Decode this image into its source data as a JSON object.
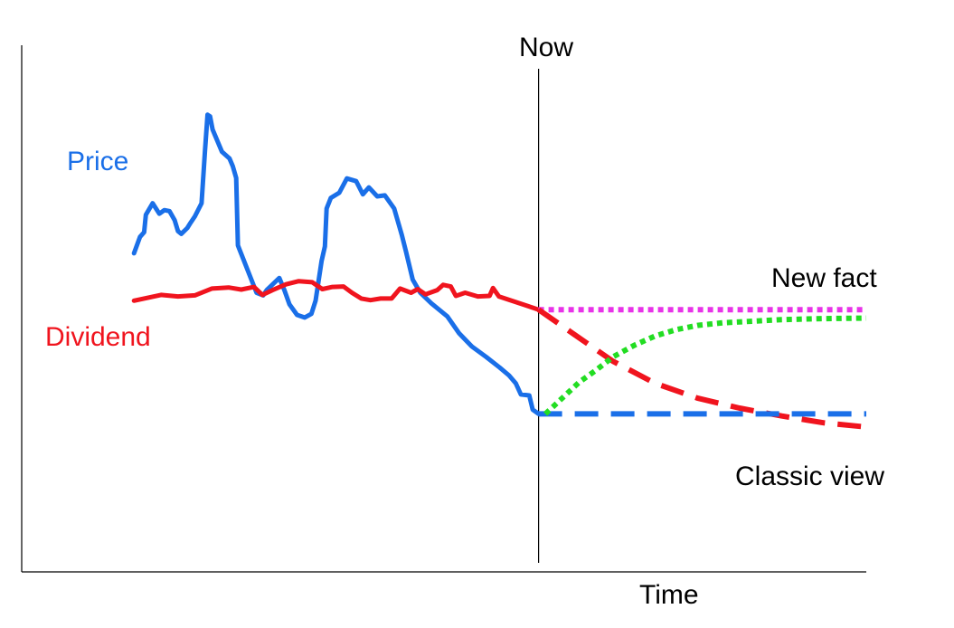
{
  "chart_data": {
    "type": "line",
    "xlabel": "Time",
    "ylabel": "",
    "x_range": [
      0,
      100
    ],
    "y_range": [
      0,
      100
    ],
    "grid": false,
    "annotations": {
      "now": "Now",
      "price": "Price",
      "dividend": "Dividend",
      "new_fact": "New fact",
      "classic_view": "Classic view"
    },
    "now_x": 61.2,
    "series": [
      {
        "name": "Price",
        "role": "historical",
        "color": "#1a6fe8",
        "style": "solid",
        "points": [
          [
            13.3,
            60.5
          ],
          [
            14.0,
            63.6
          ],
          [
            14.5,
            64.5
          ],
          [
            14.7,
            67.8
          ],
          [
            15.5,
            70.0
          ],
          [
            16.3,
            68.0
          ],
          [
            16.9,
            68.7
          ],
          [
            17.5,
            68.5
          ],
          [
            18.1,
            66.8
          ],
          [
            18.5,
            64.7
          ],
          [
            18.9,
            64.2
          ],
          [
            19.6,
            65.3
          ],
          [
            20.0,
            66.3
          ],
          [
            20.5,
            67.5
          ],
          [
            21.3,
            70.0
          ],
          [
            21.7,
            80.0
          ],
          [
            22.0,
            86.8
          ],
          [
            22.3,
            86.5
          ],
          [
            22.6,
            84.0
          ],
          [
            23.7,
            79.8
          ],
          [
            24.6,
            78.5
          ],
          [
            25.0,
            77.0
          ],
          [
            25.4,
            74.8
          ],
          [
            25.6,
            62.0
          ],
          [
            27.8,
            53.0
          ],
          [
            28.6,
            52.5
          ],
          [
            29.0,
            53.5
          ],
          [
            30.5,
            55.8
          ],
          [
            31.1,
            53.5
          ],
          [
            31.7,
            50.8
          ],
          [
            32.6,
            48.8
          ],
          [
            33.5,
            48.3
          ],
          [
            34.3,
            49.0
          ],
          [
            34.8,
            51.5
          ],
          [
            35.5,
            59.0
          ],
          [
            35.9,
            61.8
          ],
          [
            36.1,
            69.0
          ],
          [
            36.6,
            71.0
          ],
          [
            37.6,
            72.0
          ],
          [
            38.5,
            74.7
          ],
          [
            39.6,
            74.2
          ],
          [
            40.4,
            71.7
          ],
          [
            41.1,
            73.0
          ],
          [
            42.1,
            71.3
          ],
          [
            43.0,
            71.5
          ],
          [
            44.1,
            69.0
          ],
          [
            45.0,
            64.0
          ],
          [
            45.5,
            60.8
          ],
          [
            46.3,
            55.5
          ],
          [
            47.2,
            53.0
          ],
          [
            48.5,
            51.0
          ],
          [
            50.4,
            48.5
          ],
          [
            51.8,
            45.3
          ],
          [
            53.3,
            42.8
          ],
          [
            55.0,
            40.8
          ],
          [
            56.6,
            38.8
          ],
          [
            57.7,
            37.3
          ],
          [
            58.5,
            35.8
          ],
          [
            59.1,
            33.7
          ],
          [
            60.1,
            33.5
          ],
          [
            60.5,
            30.8
          ],
          [
            61.2,
            30.0
          ]
        ]
      },
      {
        "name": "Dividend",
        "role": "historical",
        "color": "#f0141e",
        "style": "solid",
        "points": [
          [
            13.3,
            51.5
          ],
          [
            16.5,
            52.6
          ],
          [
            18.5,
            52.3
          ],
          [
            20.5,
            52.5
          ],
          [
            22.5,
            53.8
          ],
          [
            24.5,
            54.0
          ],
          [
            26.0,
            53.6
          ],
          [
            27.5,
            54.1
          ],
          [
            28.5,
            52.6
          ],
          [
            29.7,
            53.5
          ],
          [
            31.3,
            54.6
          ],
          [
            32.8,
            55.2
          ],
          [
            34.4,
            55.0
          ],
          [
            35.6,
            53.7
          ],
          [
            36.8,
            54.1
          ],
          [
            38.1,
            54.2
          ],
          [
            39.1,
            53.0
          ],
          [
            40.2,
            51.9
          ],
          [
            41.3,
            51.6
          ],
          [
            42.5,
            51.9
          ],
          [
            43.8,
            51.9
          ],
          [
            44.8,
            53.8
          ],
          [
            46.1,
            53.0
          ],
          [
            46.9,
            53.7
          ],
          [
            47.8,
            52.7
          ],
          [
            49.2,
            53.5
          ],
          [
            49.9,
            54.5
          ],
          [
            50.8,
            54.2
          ],
          [
            51.4,
            52.4
          ],
          [
            52.5,
            53.0
          ],
          [
            54.0,
            52.3
          ],
          [
            55.4,
            52.4
          ],
          [
            55.8,
            53.9
          ],
          [
            56.5,
            52.3
          ],
          [
            58.0,
            51.5
          ],
          [
            59.9,
            50.5
          ],
          [
            61.2,
            49.8
          ]
        ]
      },
      {
        "name": "New fact",
        "role": "projection",
        "color": "#e833e8",
        "style": "dotted",
        "points": [
          [
            61.2,
            49.8
          ],
          [
            100,
            49.8
          ]
        ]
      },
      {
        "name": "Dividend",
        "role": "projection",
        "color": "#f0141e",
        "style": "dashed",
        "points": [
          [
            61.2,
            49.8
          ],
          [
            65.5,
            45.0
          ],
          [
            70.0,
            40.0
          ],
          [
            75.0,
            35.8
          ],
          [
            80.0,
            33.0
          ],
          [
            85.0,
            31.1
          ],
          [
            90.0,
            29.6
          ],
          [
            95.0,
            28.3
          ],
          [
            100,
            27.5
          ]
        ]
      },
      {
        "name": "Classic view",
        "role": "projection",
        "color": "#1a6fe8",
        "style": "dashed",
        "points": [
          [
            61.2,
            30.0
          ],
          [
            100,
            30.0
          ]
        ]
      },
      {
        "name": "Price",
        "role": "projection",
        "color": "#22dd22",
        "style": "dotted",
        "points": [
          [
            62.0,
            30.0
          ],
          [
            64.0,
            33.0
          ],
          [
            66.0,
            36.0
          ],
          [
            68.0,
            38.3
          ],
          [
            70.0,
            40.8
          ],
          [
            72.5,
            43.0
          ],
          [
            75.0,
            44.8
          ],
          [
            77.5,
            46.0
          ],
          [
            80.0,
            46.8
          ],
          [
            83.0,
            47.3
          ],
          [
            86.5,
            47.6
          ],
          [
            90.0,
            47.9
          ],
          [
            95.0,
            48.1
          ],
          [
            100,
            48.2
          ]
        ]
      }
    ]
  }
}
